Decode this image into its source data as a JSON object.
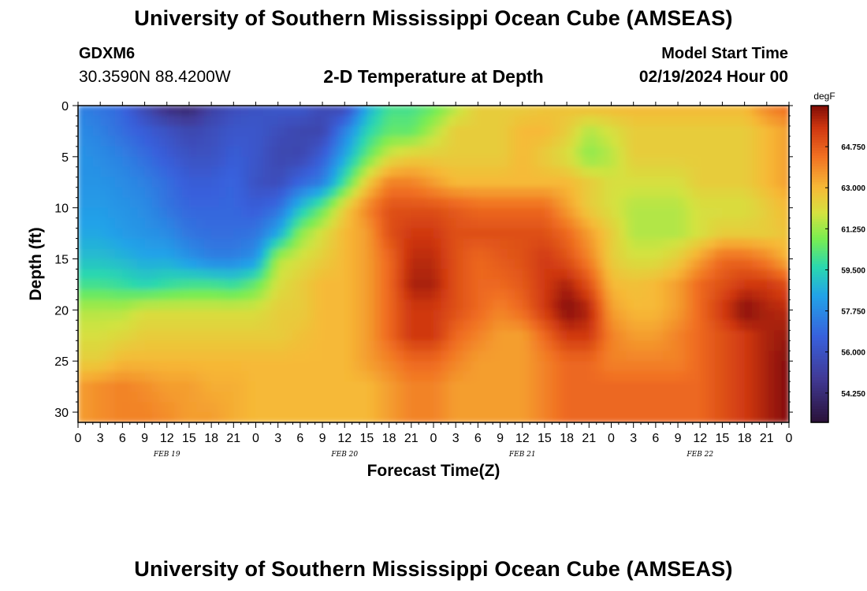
{
  "header": {
    "title": "University of Southern Mississippi Ocean Cube (AMSEAS)",
    "station_id": "GDXM6",
    "coords": "30.3590N  88.4200W",
    "plot_title": "2-D Temperature at Depth",
    "start_label": "Model Start Time",
    "start_value": "02/19/2024 Hour 00"
  },
  "footer": {
    "title": "University of Southern Mississippi Ocean Cube (AMSEAS)"
  },
  "chart_data": {
    "type": "heatmap",
    "title": "2-D Temperature at Depth",
    "xlabel": "Forecast Time(Z)",
    "ylabel": "Depth (ft)",
    "x_hours": [
      0,
      3,
      6,
      9,
      12,
      15,
      18,
      21,
      24,
      27,
      30,
      33,
      36,
      39,
      42,
      45,
      48,
      51,
      54,
      57,
      60,
      63,
      66,
      69,
      72,
      75,
      78,
      81,
      84,
      87,
      90,
      93,
      96
    ],
    "x_tick_labels": [
      "0",
      "3",
      "6",
      "9",
      "12",
      "15",
      "18",
      "21",
      "0",
      "3",
      "6",
      "9",
      "12",
      "15",
      "18",
      "21",
      "0",
      "3",
      "6",
      "9",
      "12",
      "15",
      "18",
      "21",
      "0",
      "3",
      "6",
      "9",
      "12",
      "15",
      "18",
      "21",
      "0"
    ],
    "date_labels": [
      {
        "hour": 12,
        "label": "FEB 19"
      },
      {
        "hour": 36,
        "label": "FEB 20"
      },
      {
        "hour": 60,
        "label": "FEB 21"
      },
      {
        "hour": 84,
        "label": "FEB 22"
      }
    ],
    "y_depths_ft": [
      0,
      2.5,
      5,
      7.5,
      10,
      12.5,
      15,
      17.5,
      20,
      22.5,
      25,
      27.5,
      30
    ],
    "y_ticks": [
      0,
      5,
      10,
      15,
      20,
      25,
      30
    ],
    "ylim": [
      0,
      31
    ],
    "xlim": [
      0,
      96
    ],
    "colorbar": {
      "unit": "degF",
      "min": 53.0,
      "max": 66.5,
      "tick_values": [
        64.75,
        63.0,
        61.25,
        59.5,
        57.75,
        56.0,
        54.25
      ],
      "tick_labels": [
        "64.750",
        "63.000",
        "61.250",
        "59.500",
        "57.750",
        "56.000",
        "54.250"
      ]
    },
    "values_degF": [
      [
        57.5,
        57.2,
        56.8,
        55.5,
        54.3,
        54.0,
        55.2,
        55.8,
        56.0,
        56.2,
        56.3,
        55.7,
        55.5,
        58.5,
        60.0,
        60.0,
        60.5,
        61.5,
        62.5,
        62.5,
        62.5,
        62.7,
        62.8,
        63.0,
        63.0,
        63.0,
        63.0,
        63.0,
        63.0,
        63.0,
        63.0,
        64.0,
        64.5
      ],
      [
        57.8,
        57.5,
        57.0,
        56.5,
        56.0,
        55.5,
        55.8,
        56.2,
        56.2,
        55.8,
        55.5,
        55.5,
        57.5,
        59.5,
        60.5,
        60.5,
        61.5,
        62.5,
        62.5,
        62.5,
        63.0,
        63.0,
        62.5,
        61.5,
        62.0,
        62.5,
        62.5,
        62.5,
        62.5,
        62.5,
        62.5,
        63.0,
        63.5
      ],
      [
        58.0,
        57.8,
        57.5,
        57.0,
        56.5,
        56.0,
        56.0,
        56.5,
        56.2,
        55.5,
        55.5,
        56.5,
        58.5,
        60.5,
        62.0,
        62.5,
        62.5,
        62.5,
        62.5,
        62.5,
        63.0,
        62.5,
        62.0,
        61.0,
        61.5,
        62.5,
        62.5,
        62.5,
        62.5,
        62.5,
        62.5,
        63.0,
        63.5
      ],
      [
        58.0,
        58.0,
        57.8,
        57.5,
        57.0,
        56.5,
        56.5,
        56.8,
        56.0,
        55.8,
        56.8,
        57.5,
        60.0,
        62.5,
        64.0,
        64.0,
        63.5,
        63.0,
        63.0,
        63.0,
        63.0,
        63.0,
        63.0,
        62.5,
        62.0,
        62.0,
        62.0,
        62.0,
        62.5,
        62.5,
        62.5,
        63.0,
        63.5
      ],
      [
        58.2,
        58.2,
        58.0,
        57.8,
        57.2,
        56.8,
        56.8,
        56.8,
        56.5,
        57.0,
        59.0,
        60.5,
        62.5,
        64.0,
        65.0,
        65.0,
        65.0,
        64.8,
        64.5,
        64.5,
        64.5,
        64.5,
        63.5,
        62.5,
        62.0,
        61.5,
        61.5,
        61.5,
        62.0,
        62.0,
        62.0,
        62.5,
        63.0
      ],
      [
        58.5,
        58.5,
        58.2,
        58.0,
        57.8,
        57.2,
        57.0,
        57.0,
        57.2,
        58.5,
        61.0,
        62.0,
        63.0,
        63.5,
        65.0,
        65.5,
        65.5,
        65.0,
        65.0,
        65.0,
        65.0,
        65.0,
        64.5,
        63.5,
        62.5,
        61.5,
        61.5,
        61.5,
        62.0,
        62.5,
        62.5,
        62.5,
        62.8
      ],
      [
        59.0,
        59.0,
        58.8,
        58.5,
        58.5,
        58.0,
        57.5,
        57.5,
        58.0,
        61.5,
        62.0,
        62.5,
        63.0,
        63.5,
        64.5,
        65.8,
        65.8,
        65.0,
        64.5,
        64.8,
        65.0,
        65.5,
        65.0,
        64.0,
        62.5,
        62.0,
        62.0,
        62.5,
        63.5,
        64.5,
        64.5,
        64.0,
        63.0
      ],
      [
        60.0,
        60.0,
        59.8,
        59.5,
        59.8,
        60.0,
        60.0,
        59.8,
        60.5,
        62.0,
        62.5,
        63.0,
        63.0,
        63.5,
        64.5,
        66.0,
        66.0,
        65.0,
        64.5,
        64.5,
        64.8,
        65.5,
        66.0,
        65.0,
        63.0,
        62.8,
        63.0,
        63.5,
        64.5,
        65.0,
        65.5,
        65.5,
        65.0
      ],
      [
        61.5,
        61.5,
        61.5,
        62.0,
        62.0,
        62.0,
        62.0,
        62.0,
        62.0,
        62.5,
        62.5,
        63.0,
        63.0,
        63.5,
        64.5,
        65.5,
        65.5,
        65.0,
        64.5,
        64.0,
        64.5,
        65.5,
        66.5,
        66.0,
        63.5,
        63.0,
        63.0,
        63.5,
        64.5,
        65.5,
        66.5,
        66.0,
        65.8
      ],
      [
        62.0,
        62.0,
        62.2,
        62.5,
        62.5,
        62.5,
        62.5,
        62.5,
        62.5,
        62.5,
        62.8,
        63.0,
        63.0,
        63.5,
        64.5,
        65.5,
        65.5,
        64.5,
        64.0,
        63.5,
        63.5,
        64.5,
        65.5,
        65.5,
        64.0,
        63.5,
        63.5,
        64.0,
        64.5,
        65.0,
        65.5,
        66.0,
        66.2
      ],
      [
        62.5,
        62.5,
        63.0,
        63.0,
        63.0,
        63.0,
        63.0,
        63.0,
        63.0,
        63.0,
        63.0,
        63.0,
        63.0,
        63.5,
        64.0,
        64.5,
        64.5,
        64.0,
        63.5,
        63.5,
        63.5,
        64.0,
        64.5,
        64.5,
        64.0,
        64.0,
        64.0,
        64.0,
        64.5,
        65.0,
        65.5,
        66.0,
        66.5
      ],
      [
        63.5,
        63.8,
        64.0,
        63.8,
        63.5,
        63.5,
        63.2,
        63.2,
        63.0,
        63.0,
        63.0,
        63.0,
        63.0,
        63.0,
        63.5,
        64.0,
        64.0,
        63.5,
        63.5,
        63.5,
        63.5,
        64.0,
        64.5,
        64.5,
        64.5,
        64.5,
        64.5,
        64.5,
        64.5,
        65.0,
        65.5,
        66.0,
        66.5
      ],
      [
        63.5,
        63.8,
        64.0,
        64.0,
        63.8,
        63.5,
        63.5,
        63.2,
        63.0,
        63.0,
        63.0,
        63.0,
        63.0,
        63.0,
        63.5,
        64.0,
        64.0,
        63.5,
        63.5,
        63.5,
        63.5,
        64.0,
        64.5,
        64.5,
        64.5,
        64.5,
        64.5,
        64.5,
        64.5,
        65.0,
        65.5,
        66.0,
        66.5
      ]
    ]
  }
}
